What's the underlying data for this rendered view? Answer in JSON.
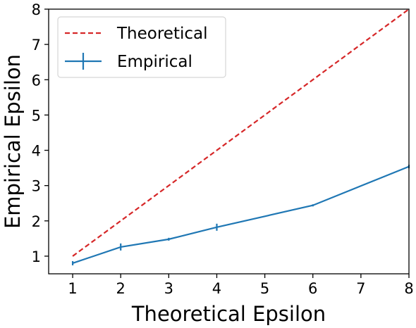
{
  "chart_data": {
    "type": "line",
    "title": "",
    "xlabel": "Theoretical Epsilon",
    "ylabel": "Empirical Epsilon",
    "xlim": [
      0.5,
      8
    ],
    "ylim": [
      0.5,
      8
    ],
    "xticks": [
      1,
      2,
      3,
      4,
      5,
      6,
      7,
      8
    ],
    "yticks": [
      1,
      2,
      3,
      4,
      5,
      6,
      7,
      8
    ],
    "grid": false,
    "legend_position": "top-left",
    "series": [
      {
        "name": "Theoretical",
        "style": "dashed",
        "color": "#d62728",
        "x": [
          1,
          8
        ],
        "y": [
          1,
          8
        ]
      },
      {
        "name": "Empirical",
        "style": "solid-errorbar",
        "color": "#1f77b4",
        "x": [
          1,
          2,
          3,
          4,
          6,
          8
        ],
        "y": [
          0.8,
          1.26,
          1.48,
          1.82,
          2.44,
          3.54
        ],
        "yerr": [
          0.06,
          0.1,
          0.04,
          0.1,
          0.03,
          0.05
        ]
      }
    ]
  }
}
